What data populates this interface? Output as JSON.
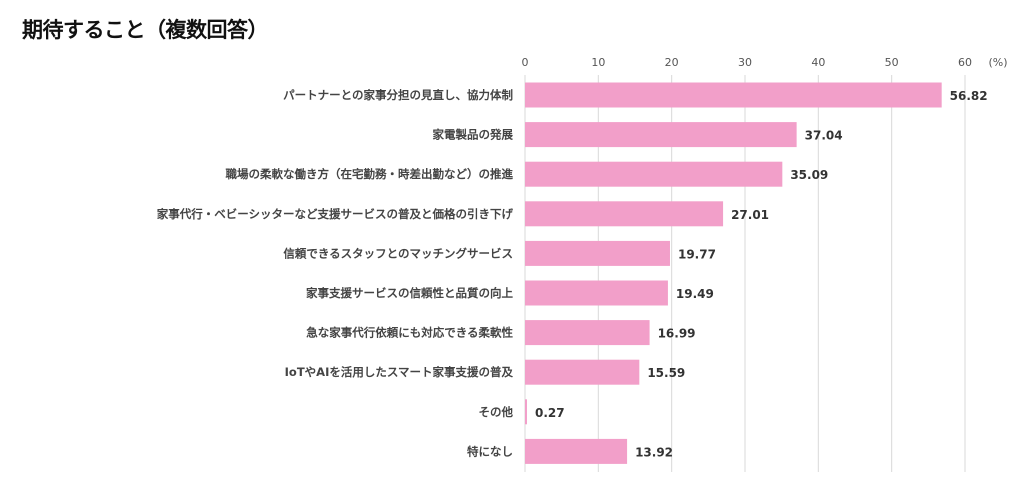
{
  "chart_data": {
    "type": "bar",
    "orientation": "horizontal",
    "title": "期待すること（複数回答）",
    "unit_label": "(%)",
    "xlim": [
      0,
      60
    ],
    "xticks": [
      0,
      10,
      20,
      30,
      40,
      50,
      60
    ],
    "grid": true,
    "bar_color": "#f29fc9",
    "categories": [
      "パートナーとの家事分担の見直し、協力体制",
      "家電製品の発展",
      "職場の柔軟な働き方（在宅勤務・時差出勤など）の推進",
      "家事代行・ベビーシッターなど支援サービスの普及と価格の引き下げ",
      "信頼できるスタッフとのマッチングサービス",
      "家事支援サービスの信頼性と品質の向上",
      "急な家事代行依頼にも対応できる柔軟性",
      "IoTやAIを活用したスマート家事支援の普及",
      "その他",
      "特になし"
    ],
    "values": [
      56.82,
      37.04,
      35.09,
      27.01,
      19.77,
      19.49,
      16.99,
      15.59,
      0.27,
      13.92
    ]
  }
}
